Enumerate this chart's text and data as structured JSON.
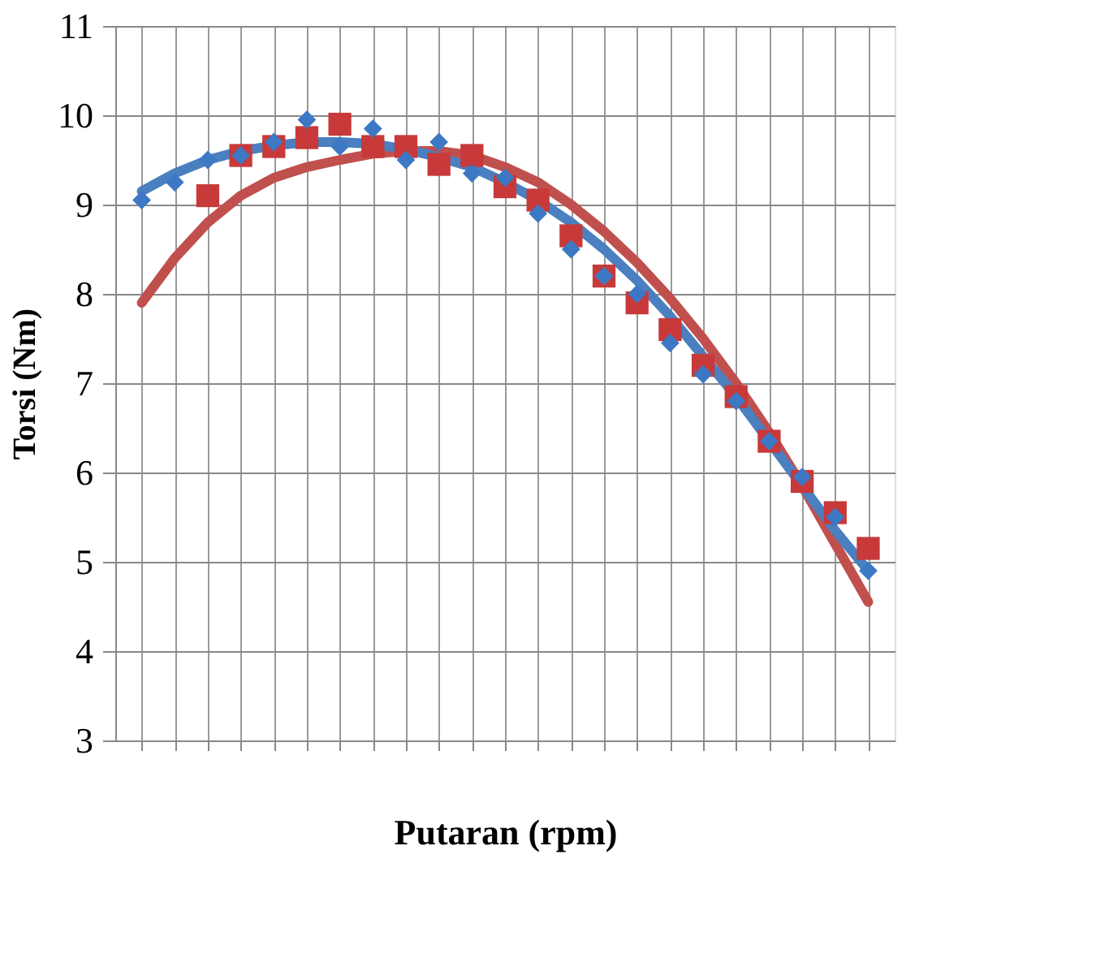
{
  "chart_data": {
    "type": "scatter",
    "xlabel": "Putaran (rpm)",
    "ylabel": "Torsi (Nm)",
    "categories": [
      null,
      null,
      null,
      null,
      null,
      null,
      null,
      null,
      null,
      null,
      null,
      null,
      null,
      null,
      null,
      null,
      null,
      null,
      null,
      null,
      null,
      null,
      null
    ],
    "ylim": [
      3,
      11
    ],
    "yticks": [
      3,
      4,
      5,
      6,
      7,
      8,
      9,
      10,
      11
    ],
    "grid": true,
    "tick_labels": "y",
    "series": [
      {
        "marker": "diamond",
        "color": "#3d78c4",
        "values": [
          9.05,
          9.25,
          9.5,
          9.55,
          9.7,
          9.95,
          9.65,
          9.85,
          9.5,
          9.7,
          9.35,
          9.3,
          8.9,
          8.5,
          8.2,
          8.0,
          7.45,
          7.1,
          6.8,
          6.35,
          5.95,
          5.5,
          4.9
        ]
      },
      {
        "marker": "square",
        "color": "#c8393a",
        "values": [
          null,
          null,
          9.1,
          9.55,
          9.65,
          9.75,
          9.9,
          9.65,
          9.65,
          9.45,
          9.55,
          9.2,
          9.05,
          8.65,
          8.2,
          7.9,
          7.6,
          7.2,
          6.85,
          6.35,
          5.9,
          5.55,
          5.15
        ]
      },
      {
        "type": "line",
        "color": "#4a7fc0",
        "values": [
          9.15,
          9.35,
          9.5,
          9.6,
          9.66,
          9.7,
          9.7,
          9.68,
          9.62,
          9.53,
          9.42,
          9.25,
          9.05,
          8.8,
          8.5,
          8.15,
          7.75,
          7.3,
          6.85,
          6.35,
          5.85,
          5.35,
          4.9
        ]
      },
      {
        "type": "line",
        "color": "#c0504d",
        "values": [
          7.9,
          8.4,
          8.8,
          9.1,
          9.3,
          9.42,
          9.5,
          9.57,
          9.6,
          9.6,
          9.55,
          9.42,
          9.25,
          9.0,
          8.7,
          8.35,
          7.95,
          7.5,
          7.0,
          6.45,
          5.85,
          5.2,
          4.55
        ]
      }
    ]
  }
}
